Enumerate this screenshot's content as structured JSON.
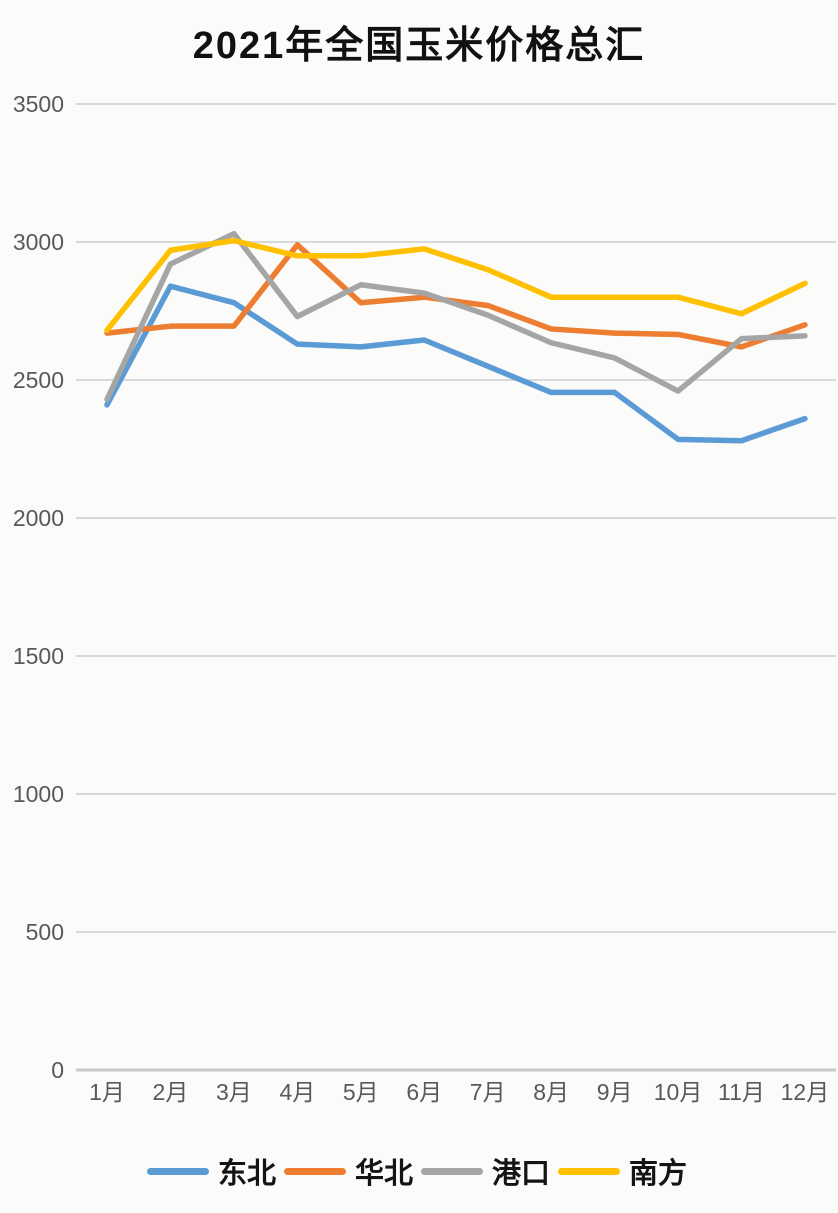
{
  "title": "2021年全国玉米价格总汇",
  "colors": {
    "background": "#fbfbf9",
    "gridline": "#d9d9d9",
    "axis_line": "#c9c9c9",
    "axis_text": "#595959",
    "title_text": "#111111",
    "series_blue": "#5B9BD5",
    "series_orange": "#ED7D31",
    "series_gray": "#A5A5A5",
    "series_yellow": "#FFC000"
  },
  "chart_data": {
    "type": "line",
    "title": "2021年全国玉米价格总汇",
    "xlabel": "",
    "ylabel": "",
    "ylim": [
      0,
      3500
    ],
    "ytick_interval": 500,
    "yticks": [
      0,
      500,
      1000,
      1500,
      2000,
      2500,
      3000,
      3500
    ],
    "grid": true,
    "legend_position": "bottom",
    "categories": [
      "1月",
      "2月",
      "3月",
      "4月",
      "5月",
      "6月",
      "7月",
      "8月",
      "9月",
      "10月",
      "11月",
      "12月"
    ],
    "series": [
      {
        "name": "东北",
        "color": "#5B9BD5",
        "values": [
          2410,
          2840,
          2780,
          2630,
          2620,
          2645,
          2550,
          2455,
          2455,
          2285,
          2280,
          2360
        ]
      },
      {
        "name": "华北",
        "color": "#ED7D31",
        "values": [
          2670,
          2695,
          2695,
          2990,
          2780,
          2800,
          2770,
          2685,
          2670,
          2665,
          2620,
          2700
        ]
      },
      {
        "name": "港口",
        "color": "#A5A5A5",
        "values": [
          2430,
          2920,
          3030,
          2730,
          2845,
          2815,
          2735,
          2635,
          2580,
          2460,
          2650,
          2660
        ]
      },
      {
        "name": "南方",
        "color": "#FFC000",
        "values": [
          2680,
          2970,
          3005,
          2950,
          2950,
          2975,
          2900,
          2800,
          2800,
          2800,
          2740,
          2850
        ]
      }
    ]
  }
}
